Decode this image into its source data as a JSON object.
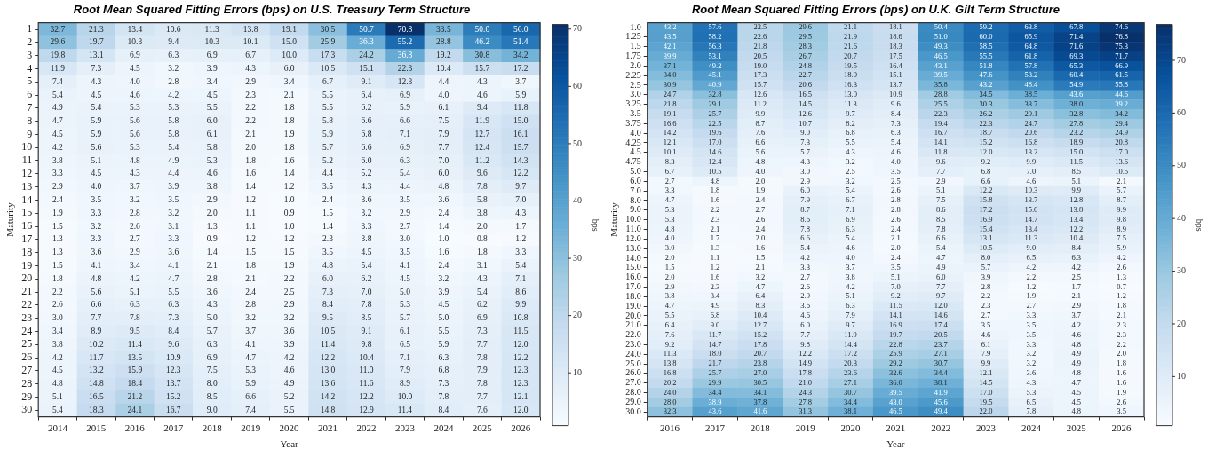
{
  "chart_data": [
    {
      "type": "heatmap",
      "title": "Root Mean Squared Fitting Errors (bps) on U.S. Treasury Term Structure",
      "xlabel": "Year",
      "ylabel": "Maturity",
      "clabel": "bps",
      "data_labels": true,
      "clim": [
        0.8,
        70.8
      ],
      "cticks": [
        10,
        20,
        30,
        40,
        50,
        60,
        70
      ],
      "categories": [
        "2014",
        "2015",
        "2016",
        "2017",
        "2018",
        "2019",
        "2020",
        "2021",
        "2022",
        "2023",
        "2024",
        "2025",
        "2026"
      ],
      "y_categories": [
        "1",
        "2",
        "3",
        "4",
        "5",
        "6",
        "7",
        "8",
        "9",
        "10",
        "11",
        "12",
        "13",
        "14",
        "15",
        "16",
        "17",
        "18",
        "19",
        "20",
        "21",
        "22",
        "23",
        "24",
        "25",
        "26",
        "27",
        "28",
        "29",
        "30"
      ],
      "cells": [
        [
          32.7,
          21.3,
          13.4,
          10.6,
          11.3,
          13.8,
          19.1,
          30.5,
          50.7,
          70.8,
          33.5,
          50.0,
          56.0
        ],
        [
          29.6,
          19.7,
          10.3,
          9.4,
          10.3,
          10.1,
          15.0,
          25.9,
          36.3,
          55.2,
          28.8,
          46.2,
          51.4
        ],
        [
          19.8,
          13.1,
          6.9,
          6.3,
          6.9,
          6.7,
          10.0,
          17.3,
          24.2,
          36.8,
          19.2,
          30.8,
          34.2
        ],
        [
          11.9,
          7.3,
          4.5,
          3.2,
          3.9,
          4.3,
          6.0,
          10.5,
          15.1,
          22.3,
          10.4,
          15.7,
          17.2
        ],
        [
          7.4,
          4.3,
          4.0,
          2.8,
          3.4,
          2.9,
          3.4,
          6.7,
          9.1,
          12.3,
          4.4,
          4.3,
          3.7
        ],
        [
          5.4,
          4.5,
          4.6,
          4.2,
          4.5,
          2.3,
          2.1,
          5.5,
          6.4,
          6.9,
          4.0,
          4.6,
          5.9
        ],
        [
          4.9,
          5.4,
          5.3,
          5.3,
          5.5,
          2.2,
          1.8,
          5.5,
          6.2,
          5.9,
          6.1,
          9.4,
          11.8
        ],
        [
          4.7,
          5.9,
          5.6,
          5.8,
          6.0,
          2.2,
          1.8,
          5.8,
          6.6,
          6.6,
          7.5,
          11.9,
          15.0
        ],
        [
          4.5,
          5.9,
          5.6,
          5.8,
          6.1,
          2.1,
          1.9,
          5.9,
          6.8,
          7.1,
          7.9,
          12.7,
          16.1
        ],
        [
          4.2,
          5.6,
          5.3,
          5.4,
          5.8,
          2.0,
          1.8,
          5.7,
          6.6,
          6.9,
          7.7,
          12.4,
          15.7
        ],
        [
          3.8,
          5.1,
          4.8,
          4.9,
          5.3,
          1.8,
          1.6,
          5.2,
          6.0,
          6.3,
          7.0,
          11.2,
          14.3
        ],
        [
          3.3,
          4.5,
          4.3,
          4.4,
          4.6,
          1.6,
          1.4,
          4.4,
          5.2,
          5.4,
          6.0,
          9.6,
          12.2
        ],
        [
          2.9,
          4.0,
          3.7,
          3.9,
          3.8,
          1.4,
          1.2,
          3.5,
          4.3,
          4.4,
          4.8,
          7.8,
          9.7
        ],
        [
          2.4,
          3.5,
          3.2,
          3.5,
          2.9,
          1.2,
          1.0,
          2.4,
          3.6,
          3.5,
          3.6,
          5.8,
          7.0
        ],
        [
          1.9,
          3.3,
          2.8,
          3.2,
          2.0,
          1.1,
          0.9,
          1.5,
          3.2,
          2.9,
          2.4,
          3.8,
          4.3
        ],
        [
          1.5,
          3.2,
          2.6,
          3.1,
          1.3,
          1.1,
          1.0,
          1.4,
          3.3,
          2.7,
          1.4,
          2.0,
          1.7
        ],
        [
          1.3,
          3.3,
          2.7,
          3.3,
          0.9,
          1.2,
          1.2,
          2.3,
          3.8,
          3.0,
          1.0,
          0.8,
          1.2
        ],
        [
          1.3,
          3.6,
          2.9,
          3.6,
          1.4,
          1.5,
          1.5,
          3.5,
          4.5,
          3.5,
          1.6,
          1.8,
          3.3
        ],
        [
          1.5,
          4.1,
          3.4,
          4.1,
          2.1,
          1.8,
          1.9,
          4.8,
          5.4,
          4.1,
          2.4,
          3.1,
          5.4
        ],
        [
          1.8,
          4.8,
          4.2,
          4.7,
          2.8,
          2.1,
          2.2,
          6.0,
          6.2,
          4.5,
          3.2,
          4.3,
          7.1
        ],
        [
          2.2,
          5.6,
          5.1,
          5.5,
          3.6,
          2.4,
          2.5,
          7.3,
          7.0,
          5.0,
          3.9,
          5.4,
          8.6
        ],
        [
          2.6,
          6.6,
          6.3,
          6.3,
          4.3,
          2.8,
          2.9,
          8.4,
          7.8,
          5.3,
          4.5,
          6.2,
          9.9
        ],
        [
          3.0,
          7.7,
          7.8,
          7.3,
          5.0,
          3.2,
          3.2,
          9.5,
          8.5,
          5.7,
          5.0,
          6.9,
          10.8
        ],
        [
          3.4,
          8.9,
          9.5,
          8.4,
          5.7,
          3.7,
          3.6,
          10.5,
          9.1,
          6.1,
          5.5,
          7.3,
          11.5
        ],
        [
          3.8,
          10.2,
          11.4,
          9.6,
          6.3,
          4.1,
          3.9,
          11.4,
          9.8,
          6.5,
          5.9,
          7.7,
          12.0
        ],
        [
          4.2,
          11.7,
          13.5,
          10.9,
          6.9,
          4.7,
          4.2,
          12.2,
          10.4,
          7.1,
          6.3,
          7.8,
          12.2
        ],
        [
          4.5,
          13.2,
          15.9,
          12.3,
          7.5,
          5.3,
          4.6,
          13.0,
          11.0,
          7.9,
          6.8,
          7.9,
          12.3
        ],
        [
          4.8,
          14.8,
          18.4,
          13.7,
          8.0,
          5.9,
          4.9,
          13.6,
          11.6,
          8.9,
          7.3,
          7.8,
          12.3
        ],
        [
          5.1,
          16.5,
          21.2,
          15.2,
          8.5,
          6.6,
          5.2,
          14.2,
          12.2,
          10.0,
          7.8,
          7.7,
          12.1
        ],
        [
          5.4,
          18.3,
          24.1,
          16.7,
          9.0,
          7.4,
          5.5,
          14.8,
          12.9,
          11.4,
          8.4,
          7.6,
          12.0
        ]
      ],
      "cell_labels": [
        [
          "32.7",
          "21.3",
          "13.4",
          "10.6",
          "11.3",
          "13.8",
          "19.1",
          "30.5",
          "50.7",
          "70.8",
          "33.5",
          "50.0",
          "56.0"
        ],
        [
          "29.6",
          "19.7",
          "10.3",
          "9.4",
          "10.3",
          "10.1",
          "15.0",
          "25.9",
          "36.3",
          "55.2",
          "28.8",
          "46.2",
          "51.4"
        ],
        [
          "19.8",
          "13.1",
          "6.9",
          "6.3",
          "6.9",
          "6.7",
          "10.0",
          "17.3",
          "24.2",
          "36.8",
          "19.2",
          "30.8",
          "34.2"
        ],
        [
          "11.9",
          "7.3",
          "4.5",
          "3.2",
          "3.9",
          "4.3",
          "6.0",
          "10.5",
          "15.1",
          "22.3",
          "10.4",
          "15.7",
          "17.2"
        ],
        [
          "7.4",
          "4.3",
          "4.0",
          "2.8",
          "3.4",
          "2.9",
          "3.4",
          "6.7",
          "9.1",
          "12.3",
          "4.4",
          "4.3",
          "3.7"
        ],
        [
          "5.4",
          "4.5",
          "4.6",
          "4.2",
          "4.5",
          "2.3",
          "2.1",
          "5.5",
          "6.4",
          "6.9",
          "4.0",
          "4.6",
          "5.9"
        ],
        [
          "4.9",
          "5.4",
          "5.3",
          "5.3",
          "5.5",
          "2.2",
          "1.8",
          "5.5",
          "6.2",
          "5.9",
          "6.1",
          "9.4",
          "11.8"
        ],
        [
          "4.7",
          "5.9",
          "5.6",
          "5.8",
          "6.0",
          "2.2",
          "1.8",
          "5.8",
          "6.6",
          "6.6",
          "7.5",
          "11.9",
          "15.0"
        ],
        [
          "4.5",
          "5.9",
          "5.6",
          "5.8",
          "6.1",
          "2.1",
          "1.9",
          "5.9",
          "6.8",
          "7.1",
          "7.9",
          "12.7",
          "16.1"
        ],
        [
          "4.2",
          "5.6",
          "5.3",
          "5.4",
          "5.8",
          "2.0",
          "1.8",
          "5.7",
          "6.6",
          "6.9",
          "7.7",
          "12.4",
          "15.7"
        ],
        [
          "3.8",
          "5.1",
          "4.8",
          "4.9",
          "5.3",
          "1.8",
          "1.6",
          "5.2",
          "6.0",
          "6.3",
          "7.0",
          "11.2",
          "14.3"
        ],
        [
          "3.3",
          "4.5",
          "4.3",
          "4.4",
          "4.6",
          "1.6",
          "1.4",
          "4.4",
          "5.2",
          "5.4",
          "6.0",
          "9.6",
          "12.2"
        ],
        [
          "2.9",
          "4.0",
          "3.7",
          "3.9",
          "3.8",
          "1.4",
          "1.2",
          "3.5",
          "4.3",
          "4.4",
          "4.8",
          "7.8",
          "9.7"
        ],
        [
          "2.4",
          "3.5",
          "3.2",
          "3.5",
          "2.9",
          "1.2",
          "1.0",
          "2.4",
          "3.6",
          "3.5",
          "3.6",
          "5.8",
          "7.0"
        ],
        [
          "1.9",
          "3.3",
          "2.8",
          "3.2",
          "2.0",
          "1.1",
          "0.9",
          "1.5",
          "3.2",
          "2.9",
          "2.4",
          "3.8",
          "4.3"
        ],
        [
          "1.5",
          "3.2",
          "2.6",
          "3.1",
          "1.3",
          "1.1",
          "1.0",
          "1.4",
          "3.3",
          "2.7",
          "1.4",
          "2.0",
          "1.7"
        ],
        [
          "1.3",
          "3.3",
          "2.7",
          "3.3",
          "0.9",
          "1.2",
          "1.2",
          "2.3",
          "3.8",
          "3.0",
          "1.0",
          "0.8",
          "1.2"
        ],
        [
          "1.3",
          "3.6",
          "2.9",
          "3.6",
          "1.4",
          "1.5",
          "1.5",
          "3.5",
          "4.5",
          "3.5",
          "1.6",
          "1.8",
          "3.3"
        ],
        [
          "1.5",
          "4.1",
          "3.4",
          "4.1",
          "2.1",
          "1.8",
          "1.9",
          "4.8",
          "5.4",
          "4.1",
          "2.4",
          "3.1",
          "5.4"
        ],
        [
          "1.8",
          "4.8",
          "4.2",
          "4.7",
          "2.8",
          "2.1",
          "2.2",
          "6.0",
          "6.2",
          "4.5",
          "3.2",
          "4.3",
          "7.1"
        ],
        [
          "2.2",
          "5.6",
          "5.1",
          "5.5",
          "3.6",
          "2.4",
          "2.5",
          "7.3",
          "7.0",
          "5.0",
          "3.9",
          "5.4",
          "8.6"
        ],
        [
          "2.6",
          "6.6",
          "6.3",
          "6.3",
          "4.3",
          "2.8",
          "2.9",
          "8.4",
          "7.8",
          "5.3",
          "4.5",
          "6.2",
          "9.9"
        ],
        [
          "3.0",
          "7.7",
          "7.8",
          "7.3",
          "5.0",
          "3.2",
          "3.2",
          "9.5",
          "8.5",
          "5.7",
          "5.0",
          "6.9",
          "10.8"
        ],
        [
          "3.4",
          "8.9",
          "9.5",
          "8.4",
          "5.7",
          "3.7",
          "3.6",
          "10.5",
          "9.1",
          "6.1",
          "5.5",
          "7.3",
          "11.5"
        ],
        [
          "3.8",
          "10.2",
          "11.4",
          "9.6",
          "6.3",
          "4.1",
          "3.9",
          "11.4",
          "9.8",
          "6.5",
          "5.9",
          "7.7",
          "12.0"
        ],
        [
          "4.2",
          "11.7",
          "13.5",
          "10.9",
          "6.9",
          "4.7",
          "4.2",
          "12.2",
          "10.4",
          "7.1",
          "6.3",
          "7.8",
          "12.2"
        ],
        [
          "4.5",
          "13.2",
          "15.9",
          "12.3",
          "7.5",
          "5.3",
          "4.6",
          "13.0",
          "11.0",
          "7.9",
          "6.8",
          "7.9",
          "12.3"
        ],
        [
          "4.8",
          "14.8",
          "18.4",
          "13.7",
          "8.0",
          "5.9",
          "4.9",
          "13.6",
          "11.6",
          "8.9",
          "7.3",
          "7.8",
          "12.3"
        ],
        [
          "5.1",
          "16.5",
          "21.2",
          "15.2",
          "8.5",
          "6.6",
          "5.2",
          "14.2",
          "12.2",
          "10.0",
          "7.8",
          "7.7",
          "12.1"
        ],
        [
          "5.4",
          "18.3",
          "24.1",
          "16.7",
          "9.0",
          "7.4",
          "5.5",
          "14.8",
          "12.9",
          "11.4",
          "8.4",
          "7.6",
          "12.0"
        ]
      ]
    },
    {
      "type": "heatmap",
      "title": "Root Mean Squared Fitting Errors (bps) on U.K. Gilt Term Structure",
      "xlabel": "Year",
      "ylabel": "Maturity",
      "clabel": "bps",
      "data_labels": true,
      "clim": [
        0.7,
        76.8
      ],
      "cticks": [
        10,
        20,
        30,
        40,
        50,
        60,
        70
      ],
      "categories": [
        "2016",
        "2017",
        "2018",
        "2019",
        "2020",
        "2021",
        "2022",
        "2023",
        "2024",
        "2025",
        "2026"
      ],
      "y_categories": [
        "1.0",
        "1.25",
        "1.5",
        "1.75",
        "2.0",
        "2.25",
        "2.5",
        "3.0",
        "3.25",
        "3.5",
        "3.75",
        "4.0",
        "4.25",
        "4.5",
        "4.75",
        "5.0",
        "6.0",
        "7.0",
        "8.0",
        "9.0",
        "10.0",
        "11.0",
        "12.0",
        "13.0",
        "14.0",
        "15.0",
        "16.0",
        "17.0",
        "18.0",
        "19.0",
        "20.0",
        "21.0",
        "22.0",
        "23.0",
        "24.0",
        "25.0",
        "26.0",
        "27.0",
        "28.0",
        "29.0",
        "30.0"
      ],
      "cells": [
        [
          43.2,
          57.6,
          22.5,
          29.6,
          21.1,
          18.1,
          50.4,
          59.2,
          63.8,
          67.8,
          74.6
        ],
        [
          43.5,
          58.2,
          22.6,
          29.5,
          21.9,
          18.6,
          51.0,
          60.0,
          65.9,
          71.4,
          76.8
        ],
        [
          42.1,
          56.3,
          21.8,
          28.3,
          21.6,
          18.3,
          49.3,
          58.5,
          64.8,
          71.6,
          75.3
        ],
        [
          39.9,
          53.1,
          20.5,
          26.7,
          20.7,
          17.5,
          46.5,
          55.5,
          61.8,
          69.3,
          71.7
        ],
        [
          37.1,
          49.2,
          19.0,
          24.8,
          19.5,
          16.4,
          43.1,
          51.8,
          57.8,
          65.3,
          66.9
        ],
        [
          34.0,
          45.1,
          17.3,
          22.7,
          18.0,
          15.1,
          39.5,
          47.6,
          53.2,
          60.4,
          61.5
        ],
        [
          30.9,
          40.9,
          15.7,
          20.6,
          16.3,
          13.7,
          35.8,
          43.2,
          48.4,
          54.9,
          55.8
        ],
        [
          24.7,
          32.8,
          12.6,
          16.5,
          13.0,
          10.9,
          28.8,
          34.5,
          38.5,
          43.6,
          44.6
        ],
        [
          21.8,
          29.1,
          11.2,
          14.5,
          11.3,
          9.6,
          25.5,
          30.3,
          33.7,
          38.0,
          39.2
        ],
        [
          19.1,
          25.7,
          9.9,
          12.6,
          9.7,
          8.4,
          22.3,
          26.2,
          29.1,
          32.8,
          34.2
        ],
        [
          16.6,
          22.5,
          8.7,
          10.7,
          8.2,
          7.3,
          19.4,
          22.3,
          24.7,
          27.8,
          29.4
        ],
        [
          14.2,
          19.6,
          7.6,
          9.0,
          6.8,
          6.3,
          16.7,
          18.7,
          20.6,
          23.2,
          24.9
        ],
        [
          12.1,
          17.0,
          6.6,
          7.3,
          5.5,
          5.4,
          14.1,
          15.2,
          16.8,
          18.9,
          20.8
        ],
        [
          10.1,
          14.6,
          5.6,
          5.7,
          4.3,
          4.6,
          11.8,
          12.0,
          13.2,
          15.0,
          17.0
        ],
        [
          8.3,
          12.4,
          4.8,
          4.3,
          3.2,
          4.0,
          9.6,
          9.2,
          9.9,
          11.5,
          13.6
        ],
        [
          6.7,
          10.5,
          4.0,
          3.0,
          2.5,
          3.5,
          7.7,
          6.8,
          7.0,
          8.5,
          10.5
        ],
        [
          2.7,
          4.8,
          2.0,
          2.9,
          3.2,
          2.5,
          2.9,
          6.6,
          4.6,
          5.1,
          2.1
        ],
        [
          3.3,
          1.8,
          1.9,
          6.0,
          5.4,
          2.6,
          5.1,
          12.2,
          10.3,
          9.9,
          5.7
        ],
        [
          4.7,
          1.6,
          2.4,
          7.9,
          6.7,
          2.8,
          7.5,
          15.8,
          13.7,
          12.8,
          8.7
        ],
        [
          5.3,
          2.2,
          2.7,
          8.7,
          7.1,
          2.8,
          8.6,
          17.2,
          15.0,
          13.8,
          9.9
        ],
        [
          5.3,
          2.3,
          2.6,
          8.6,
          6.9,
          2.6,
          8.5,
          16.9,
          14.7,
          13.4,
          9.8
        ],
        [
          4.8,
          2.1,
          2.4,
          7.8,
          6.3,
          2.4,
          7.8,
          15.4,
          13.4,
          12.2,
          8.9
        ],
        [
          4.0,
          1.7,
          2.0,
          6.6,
          5.4,
          2.1,
          6.6,
          13.1,
          11.3,
          10.4,
          7.5
        ],
        [
          3.0,
          1.3,
          1.6,
          5.4,
          4.6,
          2.0,
          5.4,
          10.5,
          9.0,
          8.4,
          5.9
        ],
        [
          2.0,
          1.1,
          1.5,
          4.2,
          4.0,
          2.4,
          4.7,
          8.0,
          6.5,
          6.3,
          4.2
        ],
        [
          1.5,
          1.2,
          2.1,
          3.3,
          3.7,
          3.5,
          4.9,
          5.7,
          4.2,
          4.2,
          2.6
        ],
        [
          2.0,
          1.6,
          3.2,
          2.7,
          3.8,
          5.1,
          6.0,
          3.9,
          2.2,
          2.5,
          1.3
        ],
        [
          2.9,
          2.3,
          4.7,
          2.6,
          4.2,
          7.0,
          7.7,
          2.8,
          1.2,
          1.7,
          0.7
        ],
        [
          3.8,
          3.4,
          6.4,
          2.9,
          5.1,
          9.2,
          9.7,
          2.2,
          1.9,
          2.1,
          1.2
        ],
        [
          4.7,
          4.9,
          8.3,
          3.6,
          6.3,
          11.5,
          12.0,
          2.3,
          2.7,
          2.9,
          1.8
        ],
        [
          5.5,
          6.8,
          10.4,
          4.6,
          7.9,
          14.1,
          14.6,
          2.7,
          3.3,
          3.7,
          2.1
        ],
        [
          6.4,
          9.0,
          12.7,
          6.0,
          9.7,
          16.9,
          17.4,
          3.5,
          3.5,
          4.2,
          2.3
        ],
        [
          7.6,
          11.7,
          15.2,
          7.7,
          11.9,
          19.7,
          20.5,
          4.6,
          3.5,
          4.6,
          2.3
        ],
        [
          9.2,
          14.7,
          17.8,
          9.8,
          14.4,
          22.8,
          23.7,
          6.1,
          3.3,
          4.8,
          2.2
        ],
        [
          11.3,
          18.0,
          20.7,
          12.2,
          17.2,
          25.9,
          27.1,
          7.9,
          3.2,
          4.9,
          2.0
        ],
        [
          13.8,
          21.7,
          23.8,
          14.9,
          20.3,
          29.2,
          30.7,
          9.9,
          3.2,
          4.9,
          1.8
        ],
        [
          16.8,
          25.7,
          27.0,
          17.8,
          23.6,
          32.6,
          34.4,
          12.1,
          3.6,
          4.8,
          1.6
        ],
        [
          20.2,
          29.9,
          30.5,
          21.0,
          27.1,
          36.0,
          38.1,
          14.5,
          4.3,
          4.7,
          1.6
        ],
        [
          24.0,
          34.4,
          34.1,
          24.3,
          30.7,
          39.5,
          41.9,
          17.0,
          5.3,
          4.5,
          1.9
        ],
        [
          28.0,
          38.9,
          37.8,
          27.8,
          34.4,
          43.0,
          45.6,
          19.5,
          6.5,
          4.5,
          2.6
        ],
        [
          32.3,
          43.6,
          41.6,
          31.3,
          38.1,
          46.5,
          49.4,
          22.0,
          7.8,
          4.8,
          3.5
        ]
      ],
      "cell_labels": [
        [
          "43.2",
          "57.6",
          "22.5",
          "29.6",
          "21.1",
          "18.1",
          "50.4",
          "59.2",
          "63.8",
          "67.8",
          "74.6"
        ],
        [
          "43.5",
          "58.2",
          "22.6",
          "29.5",
          "21.9",
          "18.6",
          "51.0",
          "60.0",
          "65.9",
          "71.4",
          "76.8"
        ],
        [
          "42.1",
          "56.3",
          "21.8",
          "28.3",
          "21.6",
          "18.3",
          "49.3",
          "58.5",
          "64.8",
          "71.6",
          "75.3"
        ],
        [
          "39.9",
          "53.1",
          "20.5",
          "26.7",
          "20.7",
          "17.5",
          "46.5",
          "55.5",
          "61.8",
          "69.3",
          "71.7"
        ],
        [
          "37.1",
          "49.2",
          "19.0",
          "24.8",
          "19.5",
          "16.4",
          "43.1",
          "51.8",
          "57.8",
          "65.3",
          "66.9"
        ],
        [
          "34.0",
          "45.1",
          "17.3",
          "22.7",
          "18.0",
          "15.1",
          "39.5",
          "47.6",
          "53.2",
          "60.4",
          "61.5"
        ],
        [
          "30.9",
          "40.9",
          "15.7",
          "20.6",
          "16.3",
          "13.7",
          "35.8",
          "43.2",
          "48.4",
          "54.9",
          "55.8"
        ],
        [
          "24.7",
          "32.8",
          "12.6",
          "16.5",
          "13.0",
          "10.9",
          "28.8",
          "34.5",
          "38.5",
          "43.6",
          "44.6"
        ],
        [
          "21.8",
          "29.1",
          "11.2",
          "14.5",
          "11.3",
          "9.6",
          "25.5",
          "30.3",
          "33.7",
          "38.0",
          "39.2"
        ],
        [
          "19.1",
          "25.7",
          "9.9",
          "12.6",
          "9.7",
          "8.4",
          "22.3",
          "26.2",
          "29.1",
          "32.8",
          "34.2"
        ],
        [
          "16.6",
          "22.5",
          "8.7",
          "10.7",
          "8.2",
          "7.3",
          "19.4",
          "22.3",
          "24.7",
          "27.8",
          "29.4"
        ],
        [
          "14.2",
          "19.6",
          "7.6",
          "9.0",
          "6.8",
          "6.3",
          "16.7",
          "18.7",
          "20.6",
          "23.2",
          "24.9"
        ],
        [
          "12.1",
          "17.0",
          "6.6",
          "7.3",
          "5.5",
          "5.4",
          "14.1",
          "15.2",
          "16.8",
          "18.9",
          "20.8"
        ],
        [
          "10.1",
          "14.6",
          "5.6",
          "5.7",
          "4.3",
          "4.6",
          "11.8",
          "12.0",
          "13.2",
          "15.0",
          "17.0"
        ],
        [
          "8.3",
          "12.4",
          "4.8",
          "4.3",
          "3.2",
          "4.0",
          "9.6",
          "9.2",
          "9.9",
          "11.5",
          "13.6"
        ],
        [
          "6.7",
          "10.5",
          "4.0",
          "3.0",
          "2.5",
          "3.5",
          "7.7",
          "6.8",
          "7.0",
          "8.5",
          "10.5"
        ],
        [
          "2.7",
          "4.8",
          "2.0",
          "2.9",
          "3.2",
          "2.5",
          "2.9",
          "6.6",
          "4.6",
          "5.1",
          "2.1"
        ],
        [
          "3.3",
          "1.8",
          "1.9",
          "6.0",
          "5.4",
          "2.6",
          "5.1",
          "12.2",
          "10.3",
          "9.9",
          "5.7"
        ],
        [
          "4.7",
          "1.6",
          "2.4",
          "7.9",
          "6.7",
          "2.8",
          "7.5",
          "15.8",
          "13.7",
          "12.8",
          "8.7"
        ],
        [
          "5.3",
          "2.2",
          "2.7",
          "8.7",
          "7.1",
          "2.8",
          "8.6",
          "17.2",
          "15.0",
          "13.8",
          "9.9"
        ],
        [
          "5.3",
          "2.3",
          "2.6",
          "8.6",
          "6.9",
          "2.6",
          "8.5",
          "16.9",
          "14.7",
          "13.4",
          "9.8"
        ],
        [
          "4.8",
          "2.1",
          "2.4",
          "7.8",
          "6.3",
          "2.4",
          "7.8",
          "15.4",
          "13.4",
          "12.2",
          "8.9"
        ],
        [
          "4.0",
          "1.7",
          "2.0",
          "6.6",
          "5.4",
          "2.1",
          "6.6",
          "13.1",
          "11.3",
          "10.4",
          "7.5"
        ],
        [
          "3.0",
          "1.3",
          "1.6",
          "5.4",
          "4.6",
          "2.0",
          "5.4",
          "10.5",
          "9.0",
          "8.4",
          "5.9"
        ],
        [
          "2.0",
          "1.1",
          "1.5",
          "4.2",
          "4.0",
          "2.4",
          "4.7",
          "8.0",
          "6.5",
          "6.3",
          "4.2"
        ],
        [
          "1.5",
          "1.2",
          "2.1",
          "3.3",
          "3.7",
          "3.5",
          "4.9",
          "5.7",
          "4.2",
          "4.2",
          "2.6"
        ],
        [
          "2.0",
          "1.6",
          "3.2",
          "2.7",
          "3.8",
          "5.1",
          "6.0",
          "3.9",
          "2.2",
          "2.5",
          "1.3"
        ],
        [
          "2.9",
          "2.3",
          "4.7",
          "2.6",
          "4.2",
          "7.0",
          "7.7",
          "2.8",
          "1.2",
          "1.7",
          "0.7"
        ],
        [
          "3.8",
          "3.4",
          "6.4",
          "2.9",
          "5.1",
          "9.2",
          "9.7",
          "2.2",
          "1.9",
          "2.1",
          "1.2"
        ],
        [
          "4.7",
          "4.9",
          "8.3",
          "3.6",
          "6.3",
          "11.5",
          "12.0",
          "2.3",
          "2.7",
          "2.9",
          "1.8"
        ],
        [
          "5.5",
          "6.8",
          "10.4",
          "4.6",
          "7.9",
          "14.1",
          "14.6",
          "2.7",
          "3.3",
          "3.7",
          "2.1"
        ],
        [
          "6.4",
          "9.0",
          "12.7",
          "6.0",
          "9.7",
          "16.9",
          "17.4",
          "3.5",
          "3.5",
          "4.2",
          "2.3"
        ],
        [
          "7.6",
          "11.7",
          "15.2",
          "7.7",
          "11.9",
          "19.7",
          "20.5",
          "4.6",
          "3.5",
          "4.6",
          "2.3"
        ],
        [
          "9.2",
          "14.7",
          "17.8",
          "9.8",
          "14.4",
          "22.8",
          "23.7",
          "6.1",
          "3.3",
          "4.8",
          "2.2"
        ],
        [
          "11.3",
          "18.0",
          "20.7",
          "12.2",
          "17.2",
          "25.9",
          "27.1",
          "7.9",
          "3.2",
          "4.9",
          "2.0"
        ],
        [
          "13.8",
          "21.7",
          "23.8",
          "14.9",
          "20.3",
          "29.2",
          "30.7",
          "9.9",
          "3.2",
          "4.9",
          "1.8"
        ],
        [
          "16.8",
          "25.7",
          "27.0",
          "17.8",
          "23.6",
          "32.6",
          "34.4",
          "12.1",
          "3.6",
          "4.8",
          "1.6"
        ],
        [
          "20.2",
          "29.9",
          "30.5",
          "21.0",
          "27.1",
          "36.0",
          "38.1",
          "14.5",
          "4.3",
          "4.7",
          "1.6"
        ],
        [
          "24.0",
          "34.4",
          "34.1",
          "24.3",
          "30.7",
          "39.5",
          "41.9",
          "17.0",
          "5.3",
          "4.5",
          "1.9"
        ],
        [
          "28.0",
          "38.9",
          "37.8",
          "27.8",
          "34.4",
          "43.0",
          "45.6",
          "19.5",
          "6.5",
          "4.5",
          "2.6"
        ],
        [
          "32.3",
          "43.6",
          "41.6",
          "31.3",
          "38.1",
          "46.5",
          "49.4",
          "22.0",
          "7.8",
          "4.8",
          "3.5"
        ]
      ]
    }
  ]
}
